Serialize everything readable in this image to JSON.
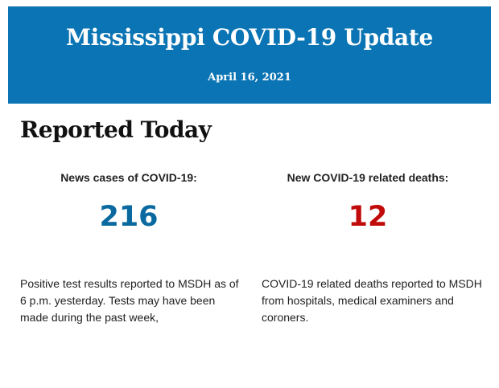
{
  "banner": {
    "title": "Mississippi COVID-19 Update",
    "date": "April 16, 2021",
    "background_color": "#0a74b4"
  },
  "section": {
    "heading": "Reported Today"
  },
  "cases": {
    "label": "News cases of COVID-19:",
    "value": "216",
    "value_color": "#0a6aa0",
    "description": "Positive test results reported to MSDH as of 6 p.m. yesterday. Tests may have been made during the past week,"
  },
  "deaths": {
    "label": "New COVID-19 related deaths:",
    "value": "12",
    "value_color": "#c10a0a",
    "description": "COVID-19 related deaths reported to MSDH from hospitals, medical examiners and coroners."
  }
}
